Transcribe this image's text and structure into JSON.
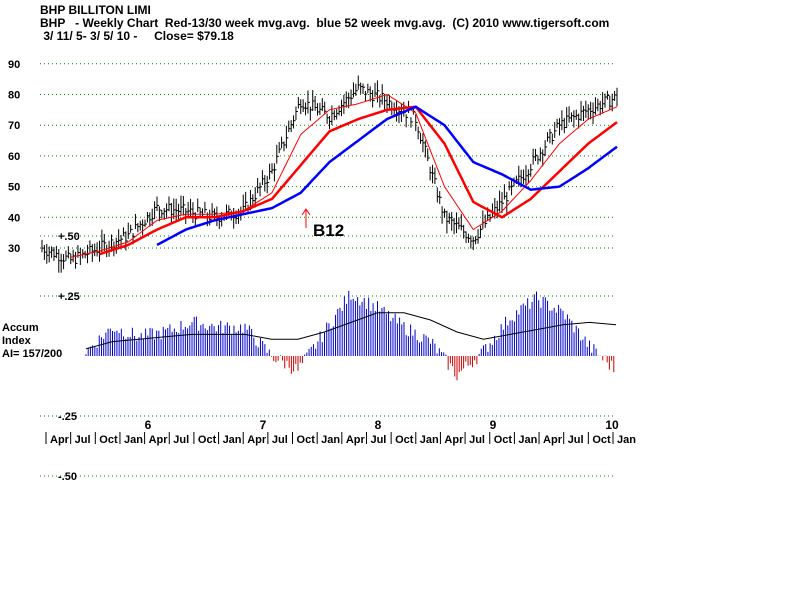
{
  "header": {
    "line1": "BHP BILLITON LIMI",
    "line2": "BHP   - Weekly Chart  Red-13/30 week mvg.avg.  blue 52 week mvg.avg.  (C) 2010 www.tigersoft.com",
    "line3": " 3/ 11/ 5- 3/ 5/ 10 -     Close= $79.18"
  },
  "accum": {
    "label1": "Accum",
    "label2": "Index",
    "label3": "AI= 157/200"
  },
  "annotation": {
    "text": "B12"
  },
  "colors": {
    "price": "#000000",
    "ma13": "#ff0000",
    "ma30": "#ff0000",
    "ma52": "#0000ff",
    "grid": "#008000",
    "accum_pos": "#0000cc",
    "accum_neg": "#cc0000"
  },
  "chart_data": [
    {
      "type": "line",
      "title": "BHP BILLITON LIMI",
      "y_ticks": [
        30,
        40,
        50,
        60,
        70,
        80,
        90
      ],
      "ylim": [
        25,
        95
      ],
      "x_tick_labels": [
        "Apr",
        "Jul",
        "Oct",
        "Jan",
        "Apr",
        "Jul",
        "Oct",
        "Jan",
        "Apr",
        "Jul",
        "Oct",
        "Jan",
        "Apr",
        "Jul",
        "Oct",
        "Jan",
        "Apr",
        "Jul",
        "Oct",
        "Jan",
        "Apr",
        "Jul",
        "Oct",
        "Jan"
      ],
      "year_labels": [
        "6",
        "7",
        "8",
        "9",
        "10"
      ],
      "x": [
        "2005-03",
        "2005-06",
        "2005-09",
        "2005-12",
        "2006-03",
        "2006-06",
        "2006-09",
        "2006-12",
        "2007-03",
        "2007-06",
        "2007-09",
        "2007-12",
        "2008-03",
        "2008-06",
        "2008-09",
        "2008-12",
        "2009-03",
        "2009-06",
        "2009-09",
        "2009-12",
        "2010-03"
      ],
      "series": [
        {
          "name": "BHP",
          "values": [
            30,
            26,
            30,
            34,
            43,
            42,
            40,
            42,
            55,
            78,
            73,
            82,
            78,
            72,
            40,
            33,
            45,
            57,
            70,
            75,
            79.18
          ]
        },
        {
          "name": "Red-13/30 week mvg.avg.",
          "values": [
            null,
            27,
            29,
            32,
            39,
            41,
            41,
            42,
            48,
            67,
            75,
            77,
            80,
            74,
            50,
            36,
            42,
            52,
            64,
            72,
            76
          ]
        },
        {
          "name": "Red-13/30 week mvg.avg.",
          "values": [
            null,
            null,
            28,
            31,
            36,
            40,
            40,
            42,
            46,
            57,
            68,
            72,
            75,
            76,
            64,
            45,
            40,
            46,
            55,
            64,
            71
          ]
        },
        {
          "name": "blue 52 week mvg.avg.",
          "values": [
            null,
            null,
            null,
            null,
            31,
            36,
            39,
            41,
            43,
            48,
            58,
            65,
            72,
            76,
            70,
            58,
            54,
            49,
            50,
            56,
            63
          ]
        }
      ],
      "annotations": [
        "B12"
      ]
    },
    {
      "type": "area",
      "title": "Accum Index",
      "y_ticks": [
        "+.50",
        "+.25",
        "-.25",
        "-.50"
      ],
      "ylim": [
        -0.5,
        0.5
      ],
      "x": [
        "2005-03",
        "2005-06",
        "2005-09",
        "2005-12",
        "2006-03",
        "2006-06",
        "2006-09",
        "2006-12",
        "2007-03",
        "2007-06",
        "2007-09",
        "2007-12",
        "2008-03",
        "2008-06",
        "2008-09",
        "2008-12",
        "2009-03",
        "2009-06",
        "2009-09",
        "2009-12",
        "2010-03"
      ],
      "series": [
        {
          "name": "Accum Index",
          "values": [
            0.02,
            0.12,
            0.08,
            0.1,
            0.14,
            0.12,
            0.12,
            0.0,
            -0.06,
            0.1,
            0.26,
            0.2,
            0.12,
            0.06,
            -0.08,
            0.02,
            0.16,
            0.24,
            0.18,
            0.04,
            -0.06
          ]
        },
        {
          "name": "",
          "values": [
            0.03,
            0.06,
            0.07,
            0.08,
            0.09,
            0.09,
            0.09,
            0.07,
            0.07,
            0.1,
            0.14,
            0.18,
            0.18,
            0.15,
            0.1,
            0.07,
            0.09,
            0.11,
            0.13,
            0.14,
            0.13
          ]
        }
      ],
      "annotations": [
        "AI= 157/200"
      ]
    }
  ]
}
